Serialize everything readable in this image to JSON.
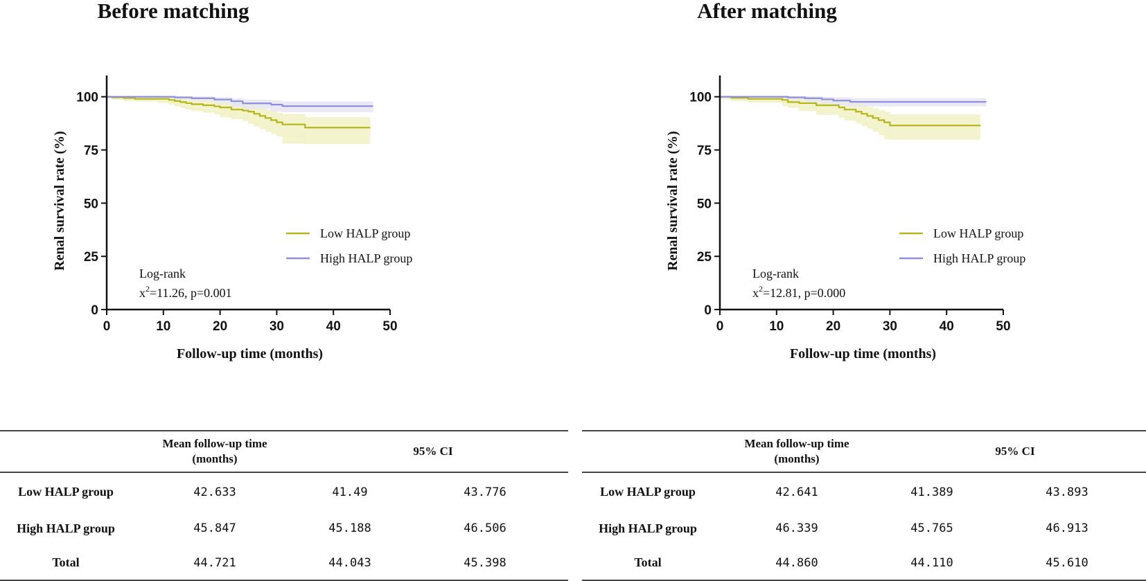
{
  "chart_data": [
    {
      "type": "line",
      "title": "Before matching",
      "xlabel": "Follow-up time (months)",
      "ylabel": "Renal survival rate (%)",
      "xlim": [
        0,
        50
      ],
      "ylim": [
        0,
        110
      ],
      "xticks": [
        "0",
        "10",
        "20",
        "30",
        "40",
        "50"
      ],
      "yticks": [
        "0",
        "25",
        "50",
        "75",
        "100"
      ],
      "legend_position": "right",
      "annotation": {
        "line1": "Log-rank",
        "stat_prefix": "x",
        "stat_sup": "2",
        "stat_rest": "=11.26,   p=0.001"
      },
      "series": [
        {
          "name": "Low  HALP group",
          "color": "#b5b51c",
          "band_color": "#f1f1c4",
          "x": [
            0,
            1,
            3,
            5,
            9,
            11,
            12,
            13,
            14,
            15,
            17,
            19,
            20,
            22,
            24,
            25,
            26,
            27,
            28,
            29,
            30,
            31,
            35,
            46.5
          ],
          "y": [
            100,
            99.7,
            99.4,
            99,
            99,
            98.5,
            98,
            97.5,
            97,
            96.5,
            96,
            95.5,
            95,
            94,
            93.5,
            93,
            92,
            91,
            90,
            89,
            88,
            87,
            85.5,
            85.5
          ],
          "lower": [
            100,
            99.2,
            98.6,
            98,
            97.8,
            97,
            96.3,
            95.5,
            94.8,
            94,
            93.3,
            92.5,
            91.7,
            90.3,
            89.5,
            88.7,
            87.3,
            86,
            84.7,
            83.5,
            82.5,
            81.3,
            78,
            78
          ],
          "upper": [
            100,
            100,
            100,
            99.7,
            99.6,
            99.4,
            99.1,
            98.8,
            98.5,
            98.1,
            97.8,
            97.4,
            97.2,
            96.7,
            96.2,
            95.8,
            95.2,
            94.5,
            93.7,
            93,
            92.3,
            91.6,
            90.2,
            90.2
          ]
        },
        {
          "name": "High  HALP group",
          "color": "#8f8fd9",
          "band_color": "#e6e6f6",
          "x": [
            0,
            12,
            15,
            19,
            22,
            24,
            29,
            31,
            47
          ],
          "y": [
            100,
            99.7,
            99.3,
            98.7,
            97.9,
            96.9,
            96.3,
            95.6,
            95.6
          ],
          "lower": [
            100,
            99.2,
            98.6,
            97.9,
            96.6,
            95.3,
            94.2,
            93,
            93
          ],
          "upper": [
            100,
            100,
            100,
            99.6,
            99.1,
            98.5,
            98,
            97.6,
            97.6
          ]
        }
      ]
    },
    {
      "type": "line",
      "title": "After matching",
      "xlabel": "Follow-up time (months)",
      "ylabel": "Renal survival rate (%)",
      "xlim": [
        0,
        50
      ],
      "ylim": [
        0,
        110
      ],
      "xticks": [
        "0",
        "10",
        "20",
        "30",
        "40",
        "50"
      ],
      "yticks": [
        "0",
        "25",
        "50",
        "75",
        "100"
      ],
      "legend_position": "right",
      "annotation": {
        "line1": "Log-rank",
        "stat_prefix": "x",
        "stat_sup": "2",
        "stat_rest": "=12.81,   p=0.000"
      },
      "series": [
        {
          "name": "Low  HALP group",
          "color": "#b5b51c",
          "band_color": "#f1f1c4",
          "x": [
            0,
            2,
            5,
            11,
            12,
            14,
            17,
            21,
            22,
            24,
            25,
            26,
            27,
            28,
            29,
            30,
            46
          ],
          "y": [
            100,
            99.5,
            99,
            98.5,
            97.5,
            97,
            96,
            95,
            94,
            93,
            92,
            91,
            90,
            89,
            88,
            86.5,
            86.5
          ],
          "lower": [
            100,
            98.8,
            98,
            97.2,
            95.6,
            94.8,
            93.3,
            91.5,
            90.2,
            88.8,
            87.5,
            86.2,
            85,
            83.5,
            82,
            80,
            80
          ],
          "upper": [
            100,
            100,
            99.8,
            99.5,
            99,
            98.7,
            98.1,
            97.5,
            96.9,
            96.3,
            95.6,
            95,
            94.3,
            93.5,
            92.8,
            91.5,
            91.5
          ]
        },
        {
          "name": "High  HALP group",
          "color": "#8f8fd9",
          "band_color": "#e6e6f6",
          "x": [
            0,
            12,
            15,
            18,
            20,
            23,
            47
          ],
          "y": [
            100,
            99.7,
            99.3,
            98.8,
            98.2,
            97.6,
            97.6
          ],
          "lower": [
            100,
            99.2,
            98.5,
            97.6,
            96.7,
            95.7,
            95.7
          ],
          "upper": [
            100,
            100,
            100,
            99.8,
            99.5,
            99.1,
            99.1
          ]
        }
      ]
    }
  ],
  "tables": [
    {
      "headers": {
        "blank": "",
        "mean_line1": "Mean follow-up time",
        "mean_line2": "(months)",
        "ci": "95% CI"
      },
      "rows": [
        {
          "label": "Low HALP group",
          "mean": "42.633",
          "lo": "41.49",
          "hi": "43.776"
        },
        {
          "label": "High HALP group",
          "mean": "45.847",
          "lo": "45.188",
          "hi": "46.506"
        },
        {
          "label": "Total",
          "mean": "44.721",
          "lo": "44.043",
          "hi": "45.398"
        }
      ]
    },
    {
      "headers": {
        "blank": "",
        "mean_line1": "Mean follow-up time",
        "mean_line2": "(months)",
        "ci": "95% CI"
      },
      "rows": [
        {
          "label": "Low HALP group",
          "mean": "42.641",
          "lo": "41.389",
          "hi": "43.893"
        },
        {
          "label": "High HALP group",
          "mean": "46.339",
          "lo": "45.765",
          "hi": "46.913"
        },
        {
          "label": "Total",
          "mean": "44.860",
          "lo": "44.110",
          "hi": "45.610"
        }
      ]
    }
  ]
}
